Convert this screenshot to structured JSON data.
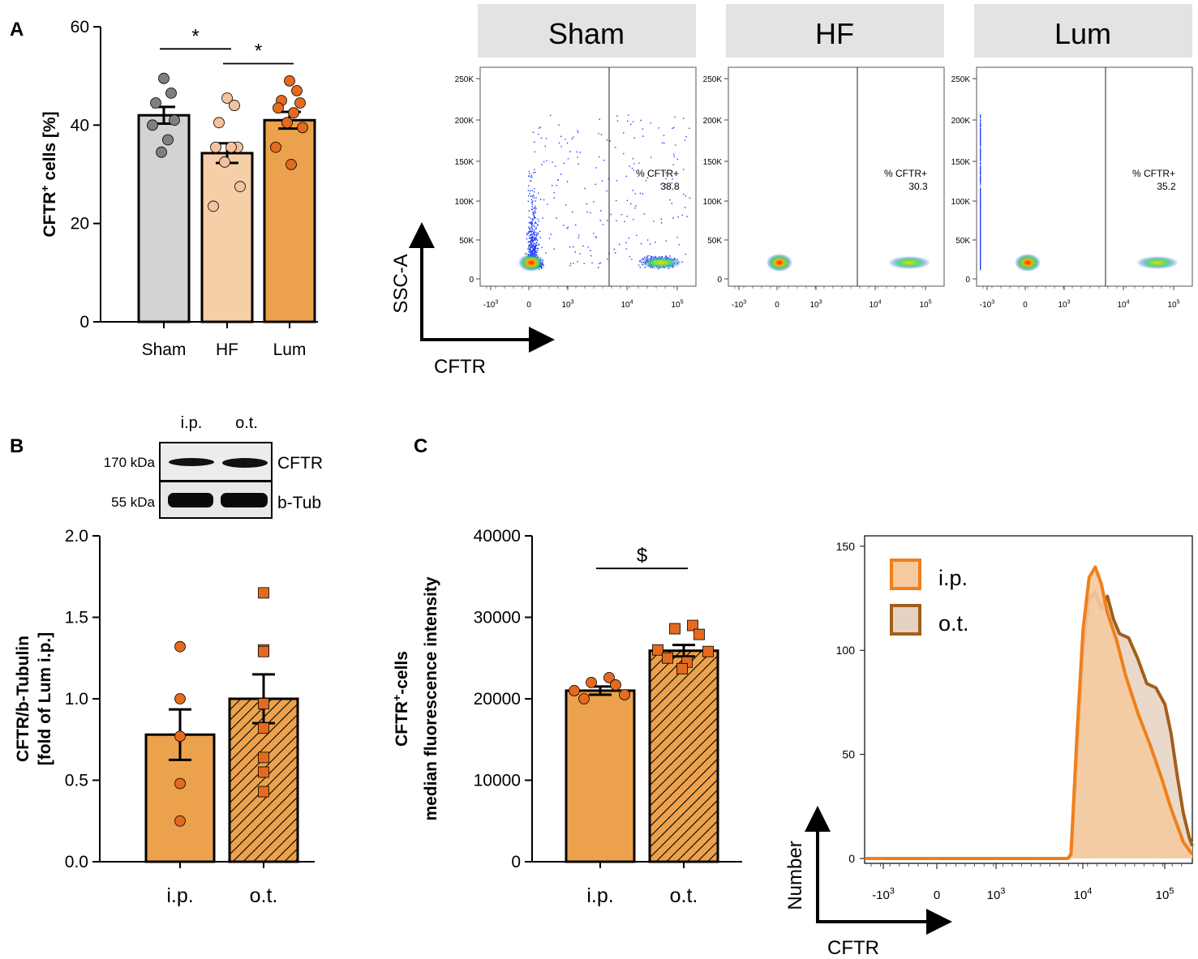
{
  "panel_labels": {
    "a": "A",
    "b": "B",
    "c": "C"
  },
  "colors": {
    "sham_bar": "#d3d3d3",
    "sham_dot": "#7f7f7f",
    "hf_bar": "#f6cfa8",
    "hf_dot": "#f3c29e",
    "lum_bar": "#eca24d",
    "lum_dot": "#e36a1e",
    "axis": "#000000",
    "strip_bg": "#e3e3e3",
    "hist_ip_fill": "#f5caa0",
    "hist_ip_line": "#f07f1a",
    "hist_ot_fill": "#e6d2c2",
    "hist_ot_line": "#a25f1a",
    "flow_dots": "#1c3bff"
  },
  "chart_data": [
    {
      "id": "panel-a-bar",
      "type": "bar",
      "ylabel_main": "CFTR",
      "ylabel_sup": "+",
      "ylabel_rest": " cells [%]",
      "ylim": [
        0,
        60
      ],
      "yticks": [
        0,
        20,
        40,
        60
      ],
      "categories": [
        "Sham",
        "HF",
        "Lum"
      ],
      "values": [
        42,
        34.3,
        41
      ],
      "sem": [
        1.7,
        2.0,
        1.7
      ],
      "points": [
        [
          49.5,
          46.5,
          44.5,
          41,
          40,
          37,
          34.5
        ],
        [
          45.5,
          44,
          40.5,
          35.5,
          35.5,
          35.5,
          32.5,
          27.5,
          23.5
        ],
        [
          49,
          47,
          45,
          44.5,
          43.5,
          42.5,
          40.5,
          39.5,
          35.5,
          32
        ]
      ],
      "significance": [
        {
          "label": "*",
          "from": 0,
          "to": 1,
          "y": 55.5
        },
        {
          "label": "*",
          "from": 1,
          "to": 2,
          "y": 52.5
        }
      ]
    },
    {
      "id": "panel-a-flow",
      "type": "scatter",
      "xlabel": "CFTR",
      "ylabel": "SSC-A",
      "y_ticks": [
        "0",
        "50K",
        "100K",
        "150K",
        "200K",
        "250K"
      ],
      "x_ticks": [
        "-10",
        "0",
        "10",
        "10",
        "10"
      ],
      "x_tick_sup": [
        "3",
        "",
        "3",
        "4",
        "5"
      ],
      "gate_label": "%  CFTR+",
      "plots": [
        {
          "title": "Sham",
          "gate_value": "38.8"
        },
        {
          "title": "HF",
          "gate_value": "30.3"
        },
        {
          "title": "Lum",
          "gate_value": "35.2"
        }
      ]
    },
    {
      "id": "panel-b-bar",
      "type": "bar",
      "ylabel_line1": "CFTR/b-Tubulin",
      "ylabel_line2": "[fold of Lum i.p.]",
      "ylim": [
        0,
        2.0
      ],
      "yticks": [
        "0.0",
        "0.5",
        "1.0",
        "1.5",
        "2.0"
      ],
      "categories": [
        "i.p.",
        "o.t."
      ],
      "values": [
        0.78,
        1.0
      ],
      "sem": [
        0.155,
        0.15
      ],
      "points": [
        [
          1.32,
          1.0,
          0.77,
          0.48,
          0.25
        ],
        [
          1.65,
          1.3,
          1.29,
          0.97,
          0.82,
          0.64,
          0.55,
          0.43
        ]
      ]
    },
    {
      "id": "panel-c-bar",
      "type": "bar",
      "ylabel_line1_main": "CFTR",
      "ylabel_line1_sup": "+",
      "ylabel_line1_rest": "-cells",
      "ylabel_line2": "median fluorescence intensity",
      "ylim": [
        0,
        40000
      ],
      "yticks": [
        "0",
        "10000",
        "20000",
        "30000",
        "40000"
      ],
      "categories": [
        "i.p.",
        "o.t."
      ],
      "values": [
        21000,
        25900
      ],
      "sem": [
        500,
        700
      ],
      "points": [
        [
          22600,
          22000,
          21700,
          21000,
          20500,
          20000
        ],
        [
          29000,
          28600,
          27900,
          26000,
          25800,
          25000,
          24500,
          23700
        ]
      ],
      "significance": [
        {
          "label": "$",
          "from": 0,
          "to": 1,
          "y": 36000
        }
      ]
    },
    {
      "id": "panel-c-histogram",
      "type": "area",
      "xlabel": "CFTR",
      "ylabel": "Number",
      "ylim": [
        0,
        155
      ],
      "yticks": [
        "0",
        "50",
        "100",
        "150"
      ],
      "x_ticks": [
        "-10",
        "0",
        "10",
        "10",
        "10"
      ],
      "x_tick_sup": [
        "3",
        "",
        "3",
        "4",
        "5"
      ],
      "legend": [
        "i.p.",
        "o.t."
      ],
      "series": [
        {
          "name": "i.p.",
          "x": [
            -0.08,
            0.59,
            0.6,
            0.62,
            0.64,
            0.66,
            0.68,
            0.7,
            0.72,
            0.75,
            0.78,
            0.82,
            0.86,
            0.9,
            0.93,
            0.97,
            1.0
          ],
          "y": [
            0,
            0,
            2,
            60,
            110,
            135,
            140,
            132,
            118,
            105,
            88,
            70,
            55,
            38,
            24,
            8,
            2
          ]
        },
        {
          "name": "o.t.",
          "x": [
            -0.08,
            0.59,
            0.6,
            0.62,
            0.64,
            0.66,
            0.68,
            0.7,
            0.72,
            0.74,
            0.76,
            0.79,
            0.82,
            0.85,
            0.88,
            0.91,
            0.93,
            0.95,
            0.97,
            0.99,
            1.0
          ],
          "y": [
            0,
            0,
            2,
            50,
            100,
            125,
            128,
            120,
            126,
            115,
            108,
            106,
            96,
            84,
            82,
            74,
            60,
            40,
            22,
            10,
            6
          ]
        }
      ]
    }
  ],
  "western_blot": {
    "lanes": [
      "i.p.",
      "o.t."
    ],
    "rows": [
      {
        "kda": "170 kDa",
        "protein": "CFTR"
      },
      {
        "kda": "55 kDa",
        "protein": "b-Tub"
      }
    ]
  }
}
